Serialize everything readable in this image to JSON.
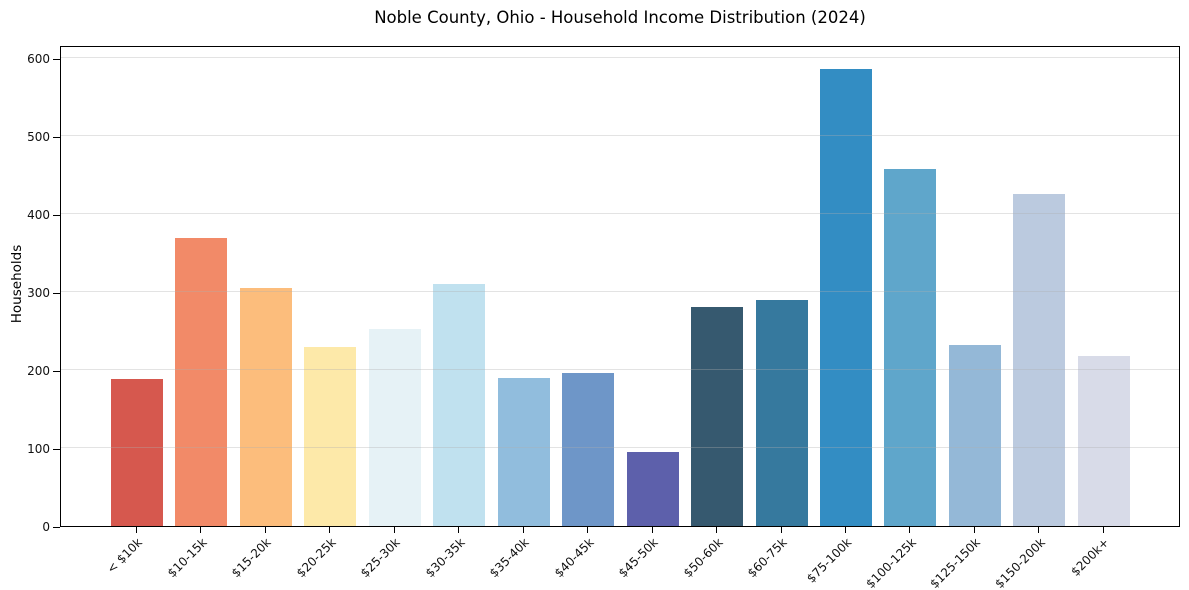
{
  "figure": {
    "background": "#ffffff",
    "axis_color": "#000000",
    "tick_label_color": "#111111"
  },
  "chart_data": {
    "type": "bar",
    "title": "Noble County, Ohio - Household Income Distribution (2024)",
    "xlabel": "",
    "ylabel": "Households",
    "categories": [
      "< $10k",
      "$10-15k",
      "$15-20k",
      "$20-25k",
      "$25-30k",
      "$30-35k",
      "$35-40k",
      "$40-45k",
      "$45-50k",
      "$50-60k",
      "$60-75k",
      "$75-100k",
      "$100-125k",
      "$125-150k",
      "$150-200k",
      "$200k+"
    ],
    "values": [
      188,
      370,
      305,
      230,
      253,
      310,
      190,
      196,
      95,
      281,
      290,
      586,
      458,
      232,
      426,
      218
    ],
    "bar_colors": [
      "#d6584e",
      "#f28a68",
      "#fcbd7c",
      "#fde9a9",
      "#e6f2f6",
      "#c0e1ef",
      "#91bddd",
      "#6e96c8",
      "#5d60ab",
      "#36596f",
      "#36799e",
      "#338dc3",
      "#5fa6cb",
      "#94b8d7",
      "#bbcadf",
      "#d8dbe8"
    ],
    "yticks": [
      0,
      100,
      200,
      300,
      400,
      500,
      600
    ],
    "ylim": [
      0,
      617
    ],
    "grid": "horizontal",
    "grid_color": "rgba(176,176,176,0.35)",
    "legend_position": "none"
  }
}
